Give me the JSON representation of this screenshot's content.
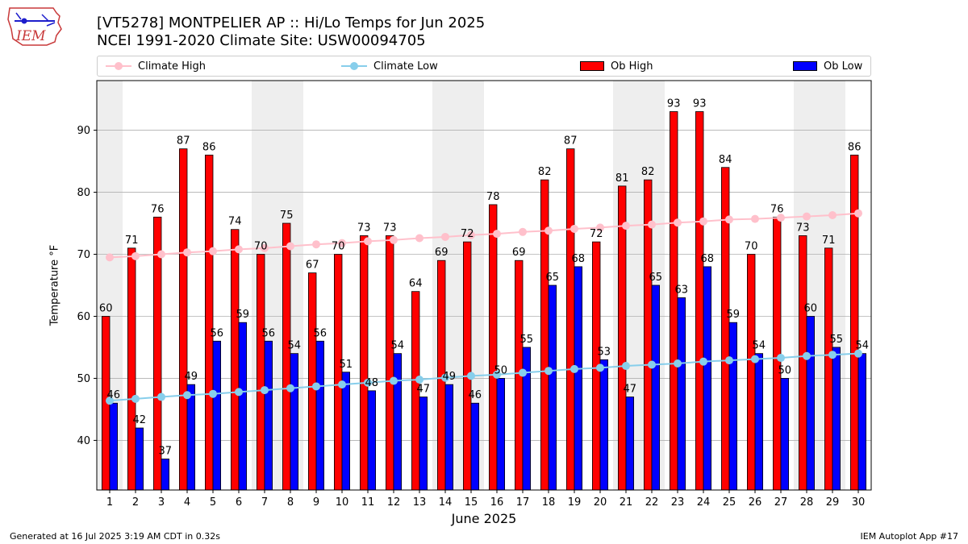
{
  "logo_text": "IEM",
  "title": {
    "line1": "[VT5278] MONTPELIER AP :: Hi/Lo Temps for Jun 2025",
    "line2": "NCEI 1991-2020 Climate Site: USW00094705"
  },
  "legend": {
    "climate_high": "Climate High",
    "climate_low": "Climate Low",
    "ob_high": "Ob High",
    "ob_low": "Ob Low"
  },
  "colors": {
    "ob_high": "#ff0000",
    "ob_low": "#0000ff",
    "climate_high": "#ffc0cb",
    "climate_low": "#87ceeb",
    "weekend_band": "#eeeeee"
  },
  "footer": {
    "left": "Generated at 16 Jul 2025 3:19 AM CDT in 0.32s",
    "right": "IEM Autoplot App #17"
  },
  "chart_data": {
    "type": "bar",
    "xlabel": "June 2025",
    "ylabel": "Temperature $^\\circ$F",
    "ylabel_display": "Temperature °F",
    "ylim": [
      32,
      98
    ],
    "yticks": [
      40,
      50,
      60,
      70,
      80,
      90
    ],
    "grid": true,
    "legend_position": "top",
    "categories": [
      "1",
      "2",
      "3",
      "4",
      "5",
      "6",
      "7",
      "8",
      "9",
      "10",
      "11",
      "12",
      "13",
      "14",
      "15",
      "16",
      "17",
      "18",
      "19",
      "20",
      "21",
      "22",
      "23",
      "24",
      "25",
      "26",
      "27",
      "28",
      "29",
      "30"
    ],
    "weekend_days": [
      1,
      7,
      8,
      14,
      15,
      21,
      22,
      28,
      29
    ],
    "series": [
      {
        "name": "Ob High",
        "kind": "bar",
        "values": [
          60,
          71,
          76,
          87,
          86,
          74,
          70,
          75,
          67,
          70,
          73,
          73,
          64,
          69,
          72,
          78,
          69,
          82,
          87,
          72,
          81,
          82,
          93,
          93,
          84,
          70,
          76,
          73,
          71,
          86
        ]
      },
      {
        "name": "Ob Low",
        "kind": "bar",
        "values": [
          46,
          42,
          37,
          49,
          56,
          59,
          56,
          54,
          56,
          51,
          48,
          54,
          47,
          49,
          46,
          50,
          55,
          65,
          68,
          53,
          47,
          65,
          63,
          68,
          59,
          54,
          50,
          60,
          55,
          54
        ]
      },
      {
        "name": "Climate High",
        "kind": "line",
        "values": [
          69.5,
          69.7,
          70.0,
          70.3,
          70.5,
          70.8,
          71.0,
          71.3,
          71.6,
          71.8,
          72.1,
          72.3,
          72.6,
          72.8,
          73.1,
          73.3,
          73.6,
          73.8,
          74.1,
          74.3,
          74.6,
          74.8,
          75.1,
          75.3,
          75.6,
          75.7,
          75.9,
          76.1,
          76.3,
          76.6
        ]
      },
      {
        "name": "Climate Low",
        "kind": "line",
        "values": [
          46.4,
          46.7,
          47.0,
          47.3,
          47.5,
          47.8,
          48.1,
          48.4,
          48.7,
          49.0,
          49.3,
          49.6,
          49.8,
          50.1,
          50.4,
          50.6,
          50.9,
          51.2,
          51.5,
          51.7,
          52.0,
          52.2,
          52.4,
          52.7,
          52.9,
          53.1,
          53.3,
          53.6,
          53.8,
          54.0
        ]
      }
    ]
  }
}
